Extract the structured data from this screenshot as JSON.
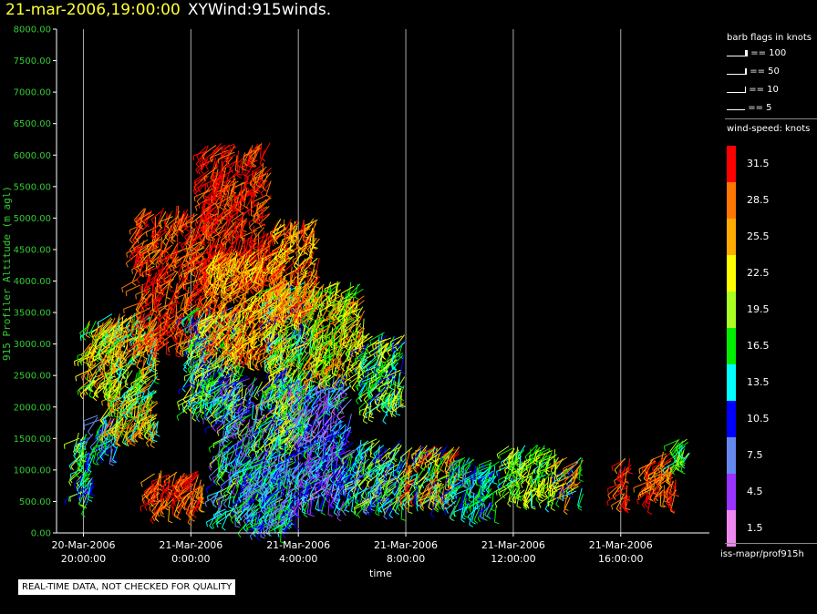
{
  "title": {
    "date": "21-mar-2006,19:00:00",
    "name": "XYWind:915winds."
  },
  "chart_data": {
    "type": "scatter",
    "ylabel": "915 Profiler Altitude (m agl)",
    "xlabel": "time",
    "ylim": [
      0,
      8000
    ],
    "y_ticks": [
      "0.00",
      "500.00",
      "1000.00",
      "1500.00",
      "2000.00",
      "2500.00",
      "3000.00",
      "3500.00",
      "4000.00",
      "4500.00",
      "5000.00",
      "5500.00",
      "6000.00",
      "6500.00",
      "7000.00",
      "7500.00",
      "8000.00"
    ],
    "x_ticks": [
      {
        "date": "20-Mar-2006",
        "time": "20:00:00"
      },
      {
        "date": "21-Mar-2006",
        "time": "0:00:00"
      },
      {
        "date": "21-Mar-2006",
        "time": "4:00:00"
      },
      {
        "date": "21-Mar-2006",
        "time": "8:00:00"
      },
      {
        "date": "21-Mar-2006",
        "time": "12:00:00"
      },
      {
        "date": "21-Mar-2006",
        "time": "16:00:00"
      }
    ],
    "x_tick_hours": [
      20,
      24,
      28,
      32,
      36,
      40
    ],
    "xlim_hours": [
      19,
      43.3
    ],
    "vertical_grid": true,
    "clusters": [
      {
        "t0": 19.8,
        "t1": 20.4,
        "z0": 500,
        "z1": 1600,
        "spd": [
          8,
          22
        ]
      },
      {
        "t0": 20.5,
        "t1": 21.3,
        "z0": 1300,
        "z1": 1900,
        "spd": [
          6,
          18
        ]
      },
      {
        "t0": 20.2,
        "t1": 21.5,
        "z0": 2300,
        "z1": 3400,
        "spd": [
          14,
          30
        ]
      },
      {
        "t0": 21.0,
        "t1": 22.8,
        "z0": 1600,
        "z1": 3500,
        "spd": [
          12,
          30
        ]
      },
      {
        "t0": 22.0,
        "t1": 24.8,
        "z0": 3000,
        "z1": 5200,
        "spd": [
          26,
          34
        ]
      },
      {
        "t0": 22.6,
        "t1": 24.5,
        "z0": 400,
        "z1": 1000,
        "spd": [
          25,
          34
        ]
      },
      {
        "t0": 24.0,
        "t1": 26.0,
        "z0": 2000,
        "z1": 3600,
        "spd": [
          8,
          24
        ]
      },
      {
        "t0": 24.5,
        "t1": 27.0,
        "z0": 4000,
        "z1": 6200,
        "spd": [
          27,
          34
        ]
      },
      {
        "t0": 24.8,
        "t1": 27.5,
        "z0": 2800,
        "z1": 4500,
        "spd": [
          20,
          32
        ]
      },
      {
        "t0": 25.0,
        "t1": 28.0,
        "z0": 300,
        "z1": 2500,
        "spd": [
          3,
          20
        ]
      },
      {
        "t0": 26.0,
        "t1": 27.8,
        "z0": 100,
        "z1": 1200,
        "spd": [
          6,
          18
        ]
      },
      {
        "t0": 27.0,
        "t1": 28.6,
        "z0": 1500,
        "z1": 4000,
        "spd": [
          10,
          26
        ]
      },
      {
        "t0": 27.2,
        "t1": 28.8,
        "z0": 3500,
        "z1": 5000,
        "spd": [
          22,
          33
        ]
      },
      {
        "t0": 28.0,
        "t1": 30.0,
        "z0": 500,
        "z1": 2500,
        "spd": [
          2,
          16
        ]
      },
      {
        "t0": 28.5,
        "t1": 30.5,
        "z0": 2500,
        "z1": 4000,
        "spd": [
          15,
          30
        ]
      },
      {
        "t0": 30.0,
        "t1": 32.0,
        "z0": 500,
        "z1": 1500,
        "spd": [
          6,
          22
        ]
      },
      {
        "t0": 30.5,
        "t1": 32.0,
        "z0": 2000,
        "z1": 3200,
        "spd": [
          10,
          24
        ]
      },
      {
        "t0": 32.0,
        "t1": 34.0,
        "z0": 550,
        "z1": 1400,
        "spd": [
          10,
          32
        ]
      },
      {
        "t0": 33.8,
        "t1": 35.5,
        "z0": 400,
        "z1": 1200,
        "spd": [
          8,
          18
        ]
      },
      {
        "t0": 35.8,
        "t1": 37.7,
        "z0": 600,
        "z1": 1400,
        "spd": [
          14,
          24
        ]
      },
      {
        "t0": 37.8,
        "t1": 38.6,
        "z0": 550,
        "z1": 1200,
        "spd": [
          10,
          30
        ]
      },
      {
        "t0": 40.0,
        "t1": 40.4,
        "z0": 500,
        "z1": 1200,
        "spd": [
          25,
          32
        ]
      },
      {
        "t0": 41.0,
        "t1": 42.1,
        "z0": 550,
        "z1": 1300,
        "spd": [
          24,
          34
        ]
      },
      {
        "t0": 42.1,
        "t1": 42.6,
        "z0": 1100,
        "z1": 1500,
        "spd": [
          14,
          20
        ]
      }
    ]
  },
  "legend": {
    "barb_heading": "barb flags in knots",
    "barbs": [
      "== 100",
      "== 50",
      "== 10",
      "== 5"
    ],
    "speed_heading": "wind-speed: knots",
    "scale": [
      {
        "label": "31.5",
        "color": "#ff0000"
      },
      {
        "label": "28.5",
        "color": "#ff7700"
      },
      {
        "label": "25.5",
        "color": "#ffaa00"
      },
      {
        "label": "22.5",
        "color": "#ffff00"
      },
      {
        "label": "19.5",
        "color": "#aaff22"
      },
      {
        "label": "16.5",
        "color": "#00ee00"
      },
      {
        "label": "13.5",
        "color": "#00ffff"
      },
      {
        "label": "10.5",
        "color": "#0000ff"
      },
      {
        "label": "7.5",
        "color": "#6688ee"
      },
      {
        "label": "4.5",
        "color": "#9933ff"
      },
      {
        "label": "1.5",
        "color": "#ee88ee"
      }
    ]
  },
  "source": "iss-mapr/prof915h",
  "quality_note": "REAL-TIME DATA, NOT CHECKED FOR QUALITY"
}
